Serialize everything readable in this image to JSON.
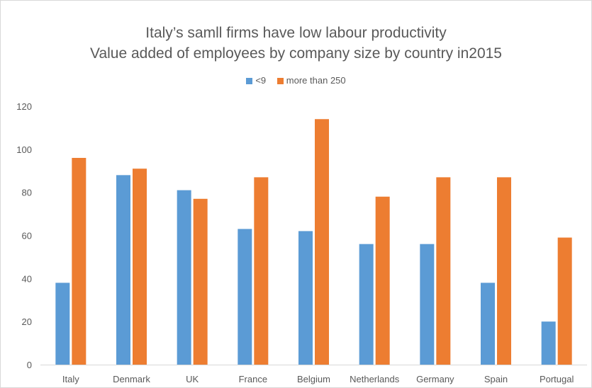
{
  "chart_data": {
    "type": "bar",
    "title": "Italy’s samll firms have low labour productivity",
    "subtitle": "Value added of employees by company size by country in2015",
    "categories": [
      "Italy",
      "Denmark",
      "UK",
      "France",
      "Belgium",
      "Netherlands",
      "Germany",
      "Spain",
      "Portugal"
    ],
    "series": [
      {
        "name": "<9",
        "color": "#5b9bd5",
        "values": [
          38,
          88,
          81,
          63,
          62,
          56,
          56,
          38,
          20
        ]
      },
      {
        "name": "more than 250",
        "color": "#ed7d31",
        "values": [
          96,
          91,
          77,
          87,
          114,
          78,
          87,
          87,
          59
        ]
      }
    ],
    "xlabel": "",
    "ylabel": "",
    "ylim": [
      0,
      120
    ],
    "yticks": [
      0,
      20,
      40,
      60,
      80,
      100,
      120
    ],
    "grid": false,
    "legend_position": "top"
  }
}
